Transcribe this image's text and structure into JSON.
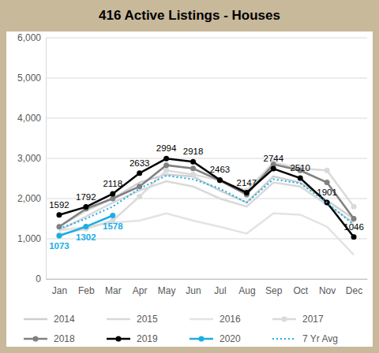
{
  "chart_data": {
    "type": "line",
    "title": "416 Active Listings - Houses",
    "categories": [
      "Jan",
      "Feb",
      "Mar",
      "Apr",
      "May",
      "Jun",
      "Jul",
      "Aug",
      "Sep",
      "Oct",
      "Nov",
      "Dec"
    ],
    "ylim": [
      0,
      6000
    ],
    "yticks": [
      0,
      {
        "value": 1000,
        "label": "1,000"
      },
      {
        "value": 2000,
        "label": "2,000"
      },
      {
        "value": 3000,
        "label": "3,000"
      },
      {
        "value": 4000,
        "label": "4,000"
      },
      {
        "value": 5000,
        "label": "5,000"
      },
      {
        "value": 6000,
        "label": "6,000"
      }
    ],
    "grid": true,
    "legend": "bottom",
    "series": [
      {
        "name": "2014",
        "color": "#cfcfcf",
        "marker": "none",
        "line_style": "solid",
        "values": [
          1300,
          1700,
          2000,
          2400,
          2600,
          2550,
          2200,
          1900,
          2550,
          2400,
          1950,
          1500
        ]
      },
      {
        "name": "2015",
        "color": "#d9d9d9",
        "marker": "none",
        "line_style": "solid",
        "values": [
          1200,
          1550,
          1900,
          2200,
          2430,
          2300,
          2000,
          1800,
          2400,
          2300,
          1850,
          1400
        ]
      },
      {
        "name": "2016",
        "color": "#e3e3e3",
        "marker": "none",
        "line_style": "solid",
        "values": [
          1200,
          1300,
          1400,
          1450,
          1630,
          1450,
          1300,
          1130,
          1630,
          1600,
          1300,
          600
        ]
      },
      {
        "name": "2017",
        "color": "#dadada",
        "marker": "circle",
        "line_style": "solid",
        "values": [
          1100,
          1250,
          1450,
          2050,
          2700,
          2600,
          2450,
          2200,
          2900,
          2750,
          2700,
          1800
        ]
      },
      {
        "name": "2018",
        "color": "#808080",
        "marker": "circle",
        "line_style": "solid",
        "values": [
          1300,
          1750,
          2000,
          2300,
          2830,
          2750,
          2450,
          2100,
          2850,
          2700,
          2400,
          1500
        ]
      },
      {
        "name": "2019",
        "color": "#000000",
        "marker": "circle",
        "line_style": "solid",
        "data_labels": true,
        "values": [
          1592,
          1792,
          2118,
          2633,
          2994,
          2918,
          2463,
          2147,
          2744,
          2510,
          1901,
          1046
        ]
      },
      {
        "name": "2020",
        "color": "#1aaee5",
        "marker": "circle",
        "line_style": "solid",
        "data_labels": true,
        "values": [
          1073,
          1302,
          1578,
          null,
          null,
          null,
          null,
          null,
          null,
          null,
          null,
          null
        ]
      },
      {
        "name": "7 Yr Avg",
        "color": "#1aaee5",
        "marker": "none",
        "line_style": "dotted",
        "values": [
          1250,
          1500,
          1800,
          2250,
          2570,
          2480,
          2250,
          1900,
          2480,
          2380,
          1900,
          1350
        ]
      }
    ]
  }
}
